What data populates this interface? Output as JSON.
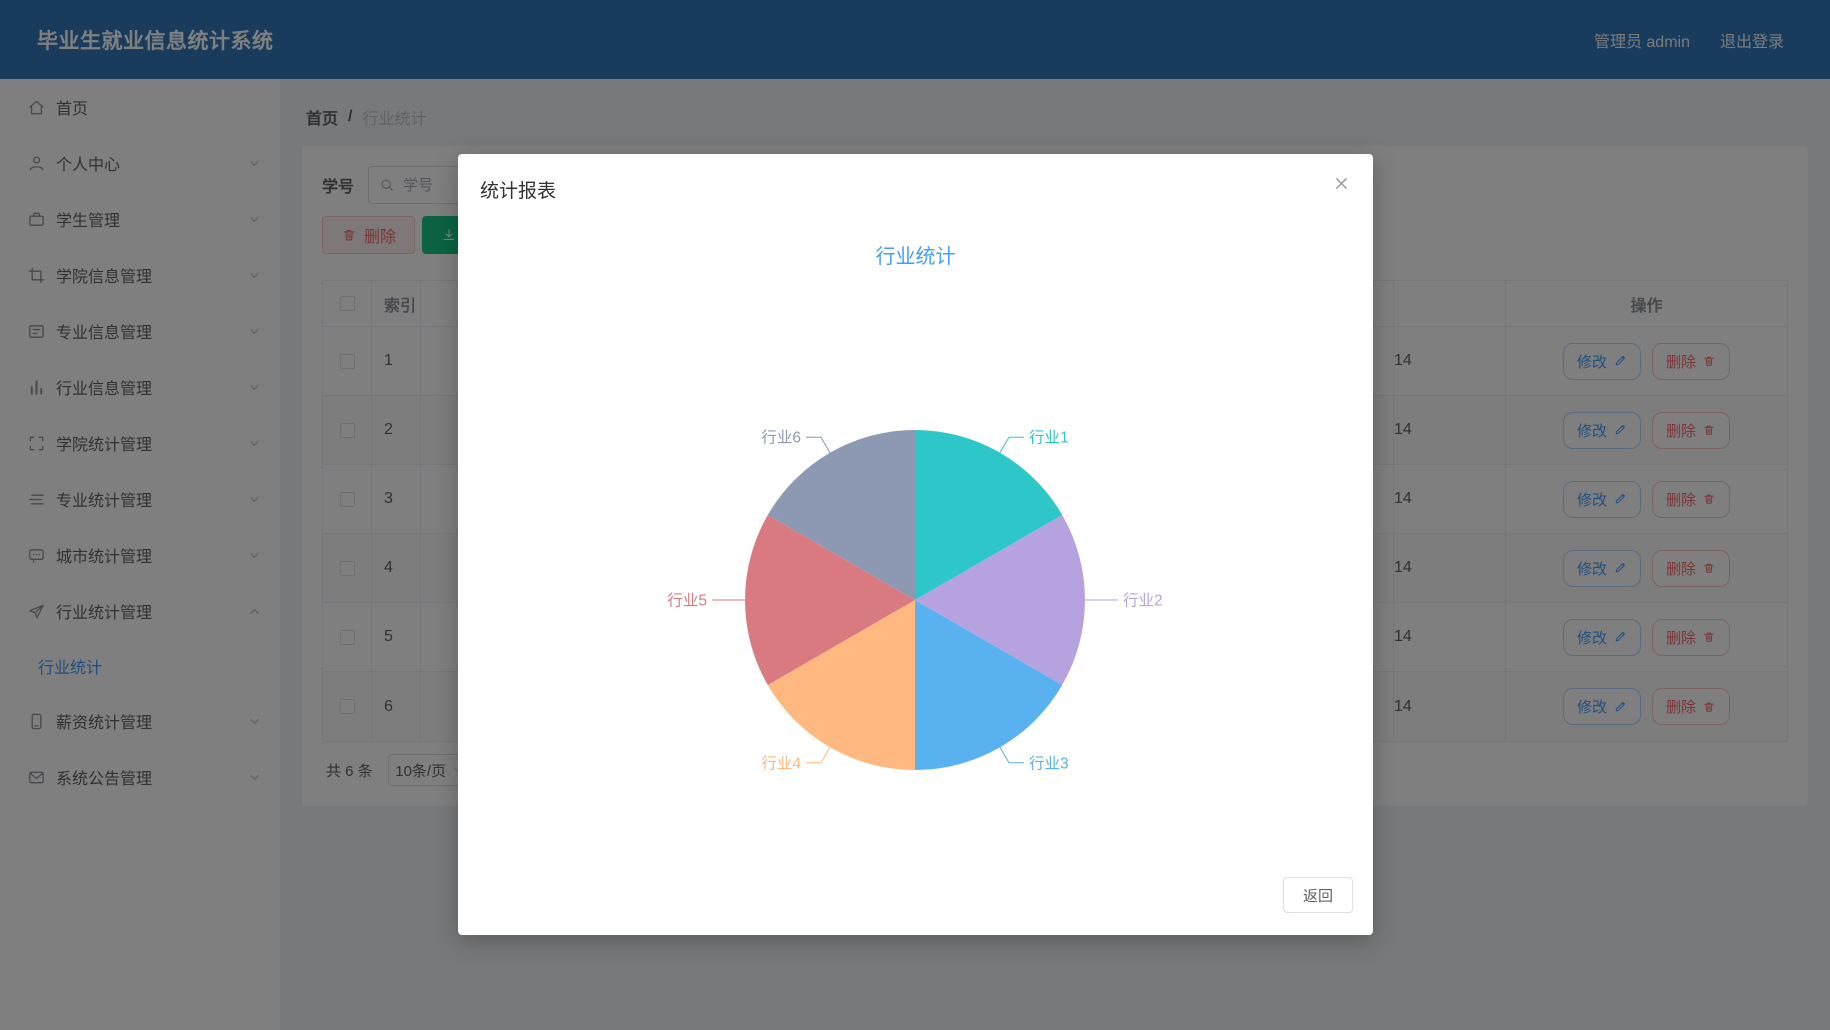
{
  "header": {
    "title": "毕业生就业信息统计系统",
    "user": "管理员 admin",
    "logout": "退出登录"
  },
  "sidebar": {
    "items": [
      {
        "id": "home",
        "label": "首页",
        "icon": "home",
        "expandable": false
      },
      {
        "id": "profile",
        "label": "个人中心",
        "icon": "user",
        "expandable": true
      },
      {
        "id": "students",
        "label": "学生管理",
        "icon": "briefcase",
        "expandable": true
      },
      {
        "id": "college-info",
        "label": "学院信息管理",
        "icon": "crop",
        "expandable": true
      },
      {
        "id": "major-info",
        "label": "专业信息管理",
        "icon": "form",
        "expandable": true
      },
      {
        "id": "industry-info",
        "label": "行业信息管理",
        "icon": "bar-chart",
        "expandable": true
      },
      {
        "id": "college-stats",
        "label": "学院统计管理",
        "icon": "fullscreen",
        "expandable": true
      },
      {
        "id": "major-stats",
        "label": "专业统计管理",
        "icon": "operation",
        "expandable": true
      },
      {
        "id": "city-stats",
        "label": "城市统计管理",
        "icon": "chat",
        "expandable": true
      },
      {
        "id": "industry-stats",
        "label": "行业统计管理",
        "icon": "send",
        "expandable": true,
        "expanded": true,
        "children": [
          {
            "id": "industry-stat",
            "label": "行业统计",
            "active": true
          }
        ]
      },
      {
        "id": "salary-stats",
        "label": "薪资统计管理",
        "icon": "phone",
        "expandable": true
      },
      {
        "id": "system-notice",
        "label": "系统公告管理",
        "icon": "mail",
        "expandable": true
      }
    ]
  },
  "breadcrumb": {
    "items": [
      "首页",
      "行业统计"
    ],
    "separator": "/"
  },
  "toolbar": {
    "search_label": "学号",
    "search_placeholder": "学号",
    "delete_label": "删除",
    "export_label": "导出"
  },
  "table": {
    "columns": {
      "index": "索引",
      "actions": "操作"
    },
    "edit_label": "修改",
    "delete_label": "删除",
    "rows": [
      {
        "index": "1",
        "time_fragment": "14"
      },
      {
        "index": "2",
        "time_fragment": "14"
      },
      {
        "index": "3",
        "time_fragment": "14"
      },
      {
        "index": "4",
        "time_fragment": "14"
      },
      {
        "index": "5",
        "time_fragment": "14"
      },
      {
        "index": "6",
        "time_fragment": "14"
      }
    ]
  },
  "pagination": {
    "total": "共 6 条",
    "page_size": "10条/页"
  },
  "modal": {
    "title": "统计报表",
    "back_label": "返回"
  },
  "colors": {
    "header_bg": "#3278b8",
    "accent": "#409eff",
    "danger": "#f56c6c",
    "export_green": "#17c787",
    "chart_title_blue": "#459ff6"
  },
  "chart_data": {
    "type": "pie",
    "title": "行业统计",
    "legend": "none",
    "labels": "outside-leader-lines",
    "start_angle_deg": 90,
    "direction": "clockwise",
    "series": [
      {
        "name": "行业1",
        "value": 1,
        "color": "#2ec7c9"
      },
      {
        "name": "行业2",
        "value": 1,
        "color": "#b6a2de"
      },
      {
        "name": "行业3",
        "value": 1,
        "color": "#5ab1ef"
      },
      {
        "name": "行业4",
        "value": 1,
        "color": "#ffb980"
      },
      {
        "name": "行业5",
        "value": 1,
        "color": "#d87a80"
      },
      {
        "name": "行业6",
        "value": 1,
        "color": "#8d98b3"
      }
    ]
  }
}
